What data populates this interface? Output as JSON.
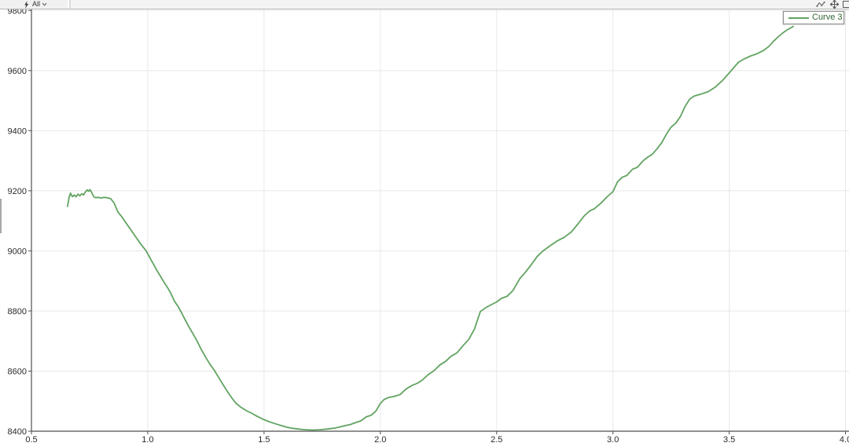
{
  "toolbar": {
    "scope_label": "All",
    "icons": {
      "bolt": "lightning-bolt",
      "scope_chevron": "chevron-down",
      "series": "line-series",
      "pan": "pan-arrows",
      "zoom_box": "zoom-rectangle"
    }
  },
  "legend": {
    "label": "Curve 3",
    "line_color": "#61a361",
    "text_color": "#336633"
  },
  "colors": {
    "curve": "#61a361",
    "grid": "#e8e8e8",
    "axis": "#4f4f4f",
    "tick_text": "#2b2b2b",
    "icon": "#555555"
  },
  "chart_data": {
    "type": "line",
    "title": "",
    "xlabel": "",
    "ylabel": "",
    "grid": true,
    "legend_position": "top-right",
    "x_ticks": [
      0.5,
      1.0,
      1.5,
      2.0,
      2.5,
      3.0,
      3.5,
      4.0
    ],
    "y_ticks": [
      8400,
      8600,
      8800,
      9000,
      9200,
      9400,
      9600,
      9800
    ],
    "xlim": [
      0.5,
      4.015
    ],
    "ylim": [
      8400,
      9806
    ],
    "series": [
      {
        "name": "Curve 3",
        "color": "#61a361",
        "points": [
          [
            0.655,
            9148
          ],
          [
            0.662,
            9178
          ],
          [
            0.668,
            9192
          ],
          [
            0.676,
            9180
          ],
          [
            0.684,
            9186
          ],
          [
            0.692,
            9180
          ],
          [
            0.7,
            9189
          ],
          [
            0.708,
            9183
          ],
          [
            0.716,
            9190
          ],
          [
            0.724,
            9186
          ],
          [
            0.732,
            9196
          ],
          [
            0.74,
            9203
          ],
          [
            0.746,
            9198
          ],
          [
            0.752,
            9204
          ],
          [
            0.76,
            9193
          ],
          [
            0.768,
            9180
          ],
          [
            0.776,
            9177
          ],
          [
            0.788,
            9178
          ],
          [
            0.8,
            9176
          ],
          [
            0.812,
            9178
          ],
          [
            0.824,
            9177
          ],
          [
            0.84,
            9174
          ],
          [
            0.855,
            9160
          ],
          [
            0.872,
            9129
          ],
          [
            0.89,
            9112
          ],
          [
            0.905,
            9095
          ],
          [
            0.922,
            9076
          ],
          [
            0.94,
            9056
          ],
          [
            0.957,
            9037
          ],
          [
            0.973,
            9020
          ],
          [
            0.993,
            9000
          ],
          [
            1.01,
            8976
          ],
          [
            1.025,
            8955
          ],
          [
            1.04,
            8934
          ],
          [
            1.055,
            8915
          ],
          [
            1.07,
            8896
          ],
          [
            1.085,
            8878
          ],
          [
            1.1,
            8858
          ],
          [
            1.115,
            8832
          ],
          [
            1.13,
            8816
          ],
          [
            1.145,
            8795
          ],
          [
            1.16,
            8772
          ],
          [
            1.175,
            8750
          ],
          [
            1.19,
            8730
          ],
          [
            1.21,
            8703
          ],
          [
            1.23,
            8672
          ],
          [
            1.25,
            8645
          ],
          [
            1.27,
            8620
          ],
          [
            1.285,
            8604
          ],
          [
            1.3,
            8585
          ],
          [
            1.32,
            8560
          ],
          [
            1.34,
            8535
          ],
          [
            1.36,
            8512
          ],
          [
            1.378,
            8494
          ],
          [
            1.4,
            8480
          ],
          [
            1.425,
            8468
          ],
          [
            1.446,
            8460
          ],
          [
            1.47,
            8450
          ],
          [
            1.49,
            8442
          ],
          [
            1.514,
            8434
          ],
          [
            1.54,
            8427
          ],
          [
            1.568,
            8420
          ],
          [
            1.595,
            8414
          ],
          [
            1.62,
            8410
          ],
          [
            1.65,
            8407
          ],
          [
            1.68,
            8405
          ],
          [
            1.71,
            8404
          ],
          [
            1.74,
            8405
          ],
          [
            1.77,
            8407
          ],
          [
            1.8,
            8410
          ],
          [
            1.825,
            8414
          ],
          [
            1.85,
            8419
          ],
          [
            1.87,
            8422
          ],
          [
            1.895,
            8429
          ],
          [
            1.915,
            8434
          ],
          [
            1.94,
            8448
          ],
          [
            1.96,
            8453
          ],
          [
            1.98,
            8466
          ],
          [
            2.0,
            8492
          ],
          [
            2.015,
            8505
          ],
          [
            2.035,
            8512
          ],
          [
            2.06,
            8516
          ],
          [
            2.085,
            8522
          ],
          [
            2.11,
            8540
          ],
          [
            2.135,
            8552
          ],
          [
            2.16,
            8560
          ],
          [
            2.18,
            8570
          ],
          [
            2.205,
            8588
          ],
          [
            2.23,
            8601
          ],
          [
            2.255,
            8620
          ],
          [
            2.28,
            8632
          ],
          [
            2.305,
            8650
          ],
          [
            2.33,
            8661
          ],
          [
            2.355,
            8684
          ],
          [
            2.38,
            8705
          ],
          [
            2.405,
            8740
          ],
          [
            2.43,
            8798
          ],
          [
            2.455,
            8812
          ],
          [
            2.48,
            8822
          ],
          [
            2.5,
            8830
          ],
          [
            2.52,
            8842
          ],
          [
            2.545,
            8849
          ],
          [
            2.57,
            8868
          ],
          [
            2.6,
            8908
          ],
          [
            2.625,
            8930
          ],
          [
            2.65,
            8955
          ],
          [
            2.675,
            8982
          ],
          [
            2.7,
            9000
          ],
          [
            2.73,
            9017
          ],
          [
            2.76,
            9033
          ],
          [
            2.79,
            9045
          ],
          [
            2.82,
            9062
          ],
          [
            2.85,
            9090
          ],
          [
            2.875,
            9115
          ],
          [
            2.9,
            9133
          ],
          [
            2.92,
            9140
          ],
          [
            2.95,
            9160
          ],
          [
            2.975,
            9180
          ],
          [
            3.0,
            9197
          ],
          [
            3.02,
            9230
          ],
          [
            3.04,
            9245
          ],
          [
            3.06,
            9251
          ],
          [
            3.085,
            9272
          ],
          [
            3.105,
            9278
          ],
          [
            3.13,
            9300
          ],
          [
            3.15,
            9312
          ],
          [
            3.17,
            9322
          ],
          [
            3.19,
            9340
          ],
          [
            3.21,
            9360
          ],
          [
            3.23,
            9388
          ],
          [
            3.25,
            9412
          ],
          [
            3.27,
            9425
          ],
          [
            3.29,
            9447
          ],
          [
            3.31,
            9480
          ],
          [
            3.33,
            9505
          ],
          [
            3.35,
            9515
          ],
          [
            3.38,
            9522
          ],
          [
            3.41,
            9530
          ],
          [
            3.44,
            9545
          ],
          [
            3.47,
            9566
          ],
          [
            3.5,
            9592
          ],
          [
            3.52,
            9610
          ],
          [
            3.54,
            9628
          ],
          [
            3.565,
            9639
          ],
          [
            3.59,
            9648
          ],
          [
            3.62,
            9656
          ],
          [
            3.65,
            9668
          ],
          [
            3.67,
            9680
          ],
          [
            3.69,
            9697
          ],
          [
            3.71,
            9712
          ],
          [
            3.73,
            9725
          ],
          [
            3.75,
            9736
          ],
          [
            3.765,
            9742
          ],
          [
            3.775,
            9747
          ]
        ]
      }
    ]
  }
}
